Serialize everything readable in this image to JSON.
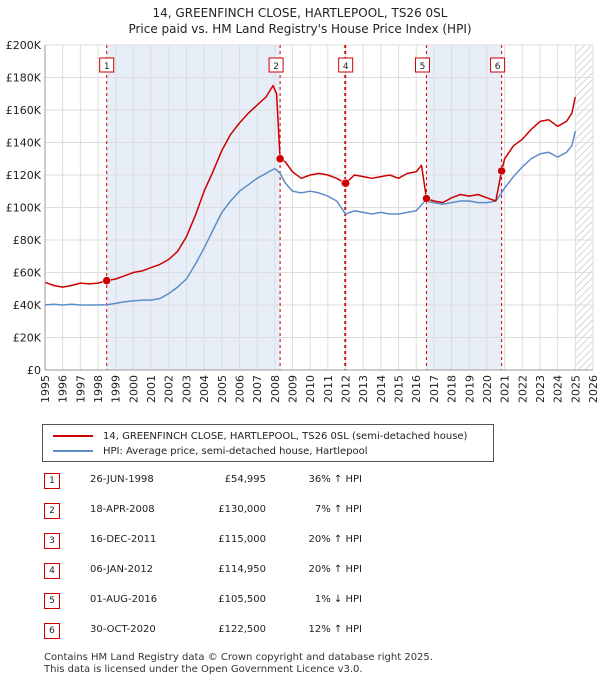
{
  "chart_data": {
    "type": "line",
    "title": "14, GREENFINCH CLOSE, HARTLEPOOL, TS26 0SL",
    "subtitle": "Price paid vs. HM Land Registry's House Price Index (HPI)",
    "xlabel": "",
    "ylabel": "",
    "xlim": [
      1995,
      2026
    ],
    "ylim": [
      0,
      200000
    ],
    "x_ticks": [
      1995,
      1996,
      1997,
      1998,
      1999,
      2000,
      2001,
      2002,
      2003,
      2004,
      2005,
      2006,
      2007,
      2008,
      2009,
      2010,
      2011,
      2012,
      2013,
      2014,
      2015,
      2016,
      2017,
      2018,
      2019,
      2020,
      2021,
      2022,
      2023,
      2024,
      2025,
      2026
    ],
    "y_ticks": [
      0,
      20000,
      40000,
      60000,
      80000,
      100000,
      120000,
      140000,
      160000,
      180000,
      200000
    ],
    "y_tick_labels": [
      "£0",
      "£20K",
      "£40K",
      "£60K",
      "£80K",
      "£100K",
      "£120K",
      "£140K",
      "£160K",
      "£180K",
      "£200K"
    ],
    "grid": true,
    "hatched_future_from": 2025.0,
    "series": [
      {
        "name": "14, GREENFINCH CLOSE, HARTLEPOOL, TS26 0SL (semi-detached house)",
        "color": "#cc0000",
        "points": [
          [
            1995.0,
            54000
          ],
          [
            1995.5,
            52000
          ],
          [
            1996.0,
            51000
          ],
          [
            1996.5,
            52000
          ],
          [
            1997.0,
            53500
          ],
          [
            1997.5,
            53000
          ],
          [
            1998.0,
            53500
          ],
          [
            1998.49,
            54995
          ],
          [
            1999.0,
            56000
          ],
          [
            1999.5,
            58000
          ],
          [
            2000.0,
            60000
          ],
          [
            2000.5,
            61000
          ],
          [
            2001.0,
            63000
          ],
          [
            2001.5,
            65000
          ],
          [
            2002.0,
            68000
          ],
          [
            2002.5,
            73000
          ],
          [
            2003.0,
            82000
          ],
          [
            2003.5,
            95000
          ],
          [
            2004.0,
            110000
          ],
          [
            2004.5,
            122000
          ],
          [
            2005.0,
            135000
          ],
          [
            2005.5,
            145000
          ],
          [
            2006.0,
            152000
          ],
          [
            2006.5,
            158000
          ],
          [
            2007.0,
            163000
          ],
          [
            2007.5,
            168000
          ],
          [
            2007.9,
            175000
          ],
          [
            2008.1,
            170000
          ],
          [
            2008.3,
            130000
          ],
          [
            2008.6,
            128000
          ],
          [
            2009.0,
            122000
          ],
          [
            2009.5,
            118000
          ],
          [
            2010.0,
            120000
          ],
          [
            2010.5,
            121000
          ],
          [
            2011.0,
            120000
          ],
          [
            2011.5,
            118000
          ],
          [
            2011.96,
            115000
          ],
          [
            2012.01,
            114950
          ],
          [
            2012.5,
            120000
          ],
          [
            2013.0,
            119000
          ],
          [
            2013.5,
            118000
          ],
          [
            2014.0,
            119000
          ],
          [
            2014.5,
            120000
          ],
          [
            2015.0,
            118000
          ],
          [
            2015.5,
            121000
          ],
          [
            2016.0,
            122000
          ],
          [
            2016.3,
            126000
          ],
          [
            2016.58,
            105500
          ],
          [
            2017.0,
            104000
          ],
          [
            2017.5,
            103000
          ],
          [
            2018.0,
            106000
          ],
          [
            2018.5,
            108000
          ],
          [
            2019.0,
            107000
          ],
          [
            2019.5,
            108000
          ],
          [
            2020.0,
            106000
          ],
          [
            2020.5,
            104000
          ],
          [
            2020.83,
            122500
          ],
          [
            2021.0,
            130000
          ],
          [
            2021.5,
            138000
          ],
          [
            2022.0,
            142000
          ],
          [
            2022.5,
            148000
          ],
          [
            2023.0,
            153000
          ],
          [
            2023.5,
            154000
          ],
          [
            2024.0,
            150000
          ],
          [
            2024.5,
            153000
          ],
          [
            2024.8,
            158000
          ],
          [
            2025.0,
            168000
          ]
        ]
      },
      {
        "name": "HPI: Average price, semi-detached house, Hartlepool",
        "color": "#5b8dc8",
        "points": [
          [
            1995.0,
            40000
          ],
          [
            1995.5,
            40500
          ],
          [
            1996.0,
            40000
          ],
          [
            1996.5,
            40500
          ],
          [
            1997.0,
            40000
          ],
          [
            1997.5,
            40000
          ],
          [
            1998.0,
            40000
          ],
          [
            1998.5,
            40200
          ],
          [
            1999.0,
            41000
          ],
          [
            1999.5,
            42000
          ],
          [
            2000.0,
            42500
          ],
          [
            2000.5,
            43000
          ],
          [
            2001.0,
            43000
          ],
          [
            2001.5,
            44000
          ],
          [
            2002.0,
            47000
          ],
          [
            2002.5,
            51000
          ],
          [
            2003.0,
            56000
          ],
          [
            2003.5,
            65000
          ],
          [
            2004.0,
            75000
          ],
          [
            2004.5,
            86000
          ],
          [
            2005.0,
            97000
          ],
          [
            2005.5,
            104000
          ],
          [
            2006.0,
            110000
          ],
          [
            2006.5,
            114000
          ],
          [
            2007.0,
            118000
          ],
          [
            2007.5,
            121000
          ],
          [
            2008.0,
            124000
          ],
          [
            2008.3,
            121000
          ],
          [
            2008.6,
            115000
          ],
          [
            2009.0,
            110000
          ],
          [
            2009.5,
            109000
          ],
          [
            2010.0,
            110000
          ],
          [
            2010.5,
            109000
          ],
          [
            2011.0,
            107000
          ],
          [
            2011.5,
            104000
          ],
          [
            2012.0,
            96000
          ],
          [
            2012.5,
            98000
          ],
          [
            2013.0,
            97000
          ],
          [
            2013.5,
            96000
          ],
          [
            2014.0,
            97000
          ],
          [
            2014.5,
            96000
          ],
          [
            2015.0,
            96000
          ],
          [
            2015.5,
            97000
          ],
          [
            2016.0,
            98000
          ],
          [
            2016.5,
            104000
          ],
          [
            2017.0,
            103000
          ],
          [
            2017.5,
            102000
          ],
          [
            2018.0,
            103000
          ],
          [
            2018.5,
            104000
          ],
          [
            2019.0,
            104000
          ],
          [
            2019.5,
            103000
          ],
          [
            2020.0,
            103000
          ],
          [
            2020.5,
            104000
          ],
          [
            2020.83,
            109000
          ],
          [
            2021.0,
            112000
          ],
          [
            2021.5,
            119000
          ],
          [
            2022.0,
            125000
          ],
          [
            2022.5,
            130000
          ],
          [
            2023.0,
            133000
          ],
          [
            2023.5,
            134000
          ],
          [
            2024.0,
            131000
          ],
          [
            2024.5,
            134000
          ],
          [
            2024.8,
            138000
          ],
          [
            2025.0,
            147000
          ]
        ]
      }
    ],
    "sale_markers": [
      {
        "id": "1",
        "year": 1998.49,
        "price": 54995
      },
      {
        "id": "2",
        "year": 2008.3,
        "price": 130000
      },
      {
        "id": "3",
        "year": 2011.96,
        "price": 115000
      },
      {
        "id": "4",
        "year": 2012.01,
        "price": 114950
      },
      {
        "id": "5",
        "year": 2016.58,
        "price": 105500
      },
      {
        "id": "6",
        "year": 2020.83,
        "price": 122500
      }
    ],
    "annotation_boxes": [
      "1",
      "2",
      "4",
      "5",
      "6"
    ],
    "legend_position": "below"
  },
  "legend": {
    "property_label": "14, GREENFINCH CLOSE, HARTLEPOOL, TS26 0SL (semi-detached house)",
    "hpi_label": "HPI: Average price, semi-detached house, Hartlepool",
    "property_color": "#cc0000",
    "hpi_color": "#5b8dc8"
  },
  "sales": [
    {
      "id": "1",
      "date": "26-JUN-1998",
      "price": "£54,995",
      "hpi": "36% ↑ HPI"
    },
    {
      "id": "2",
      "date": "18-APR-2008",
      "price": "£130,000",
      "hpi": "7% ↑ HPI"
    },
    {
      "id": "3",
      "date": "16-DEC-2011",
      "price": "£115,000",
      "hpi": "20% ↑ HPI"
    },
    {
      "id": "4",
      "date": "06-JAN-2012",
      "price": "£114,950",
      "hpi": "20% ↑ HPI"
    },
    {
      "id": "5",
      "date": "01-AUG-2016",
      "price": "£105,500",
      "hpi": "1% ↓ HPI"
    },
    {
      "id": "6",
      "date": "30-OCT-2020",
      "price": "£122,500",
      "hpi": "12% ↑ HPI"
    }
  ],
  "footer": {
    "line1": "Contains HM Land Registry data © Crown copyright and database right 2025.",
    "line2": "This data is licensed under the Open Government Licence v3.0."
  },
  "colors": {
    "shade": "#e8eef8",
    "grid": "#dddddd",
    "sale_line": "#cc0000"
  }
}
